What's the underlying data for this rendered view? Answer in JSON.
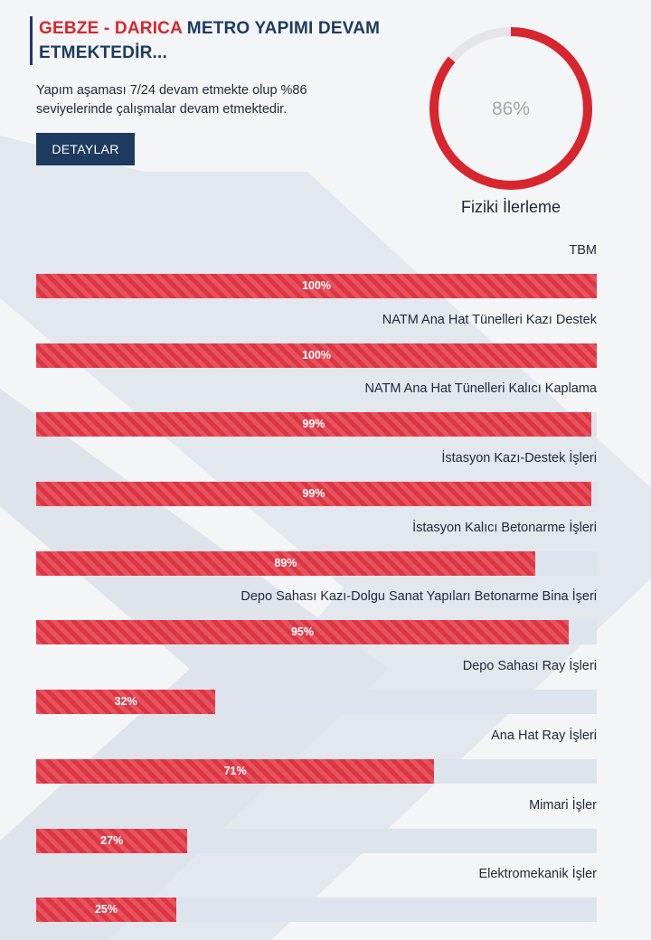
{
  "project": {
    "title_highlight": "GEBZE - DARICA",
    "title_rest": " METRO YAPIMI DEVAM ETMEKTEDİR...",
    "description": "Yapım aşaması 7/24 devam etmekte olup %86 seviyelerinde çalışmalar devam etmektedir.",
    "details_label": "DETAYLAR"
  },
  "overall": {
    "value": 86,
    "value_label": "86%",
    "label": "Fiziki İlerleme"
  },
  "colors": {
    "accent_red": "#d7262e",
    "bar_red": "#df3442",
    "navy": "#1e3a5f",
    "track": "#dde4ed",
    "ring_track": "#e6e6e8"
  },
  "tasks": [
    {
      "name": "TBM",
      "percent": 100,
      "percent_label": "100%"
    },
    {
      "name": "NATM Ana Hat Tünelleri Kazı Destek",
      "percent": 100,
      "percent_label": "100%"
    },
    {
      "name": "NATM Ana Hat Tünelleri Kalıcı Kaplama",
      "percent": 99,
      "percent_label": "99%"
    },
    {
      "name": "İstasyon Kazı-Destek İşleri",
      "percent": 99,
      "percent_label": "99%"
    },
    {
      "name": "İstasyon Kalıcı Betonarme İşleri",
      "percent": 89,
      "percent_label": "89%"
    },
    {
      "name": "Depo Sahası Kazı-Dolgu Sanat Yapıları Betonarme Bina İşeri",
      "percent": 95,
      "percent_label": "95%"
    },
    {
      "name": "Depo Sahası Ray İşleri",
      "percent": 32,
      "percent_label": "32%"
    },
    {
      "name": "Ana Hat Ray İşleri",
      "percent": 71,
      "percent_label": "71%"
    },
    {
      "name": "Mimari İşler",
      "percent": 27,
      "percent_label": "27%"
    },
    {
      "name": "Elektromekanik İşler",
      "percent": 25,
      "percent_label": "25%"
    }
  ]
}
